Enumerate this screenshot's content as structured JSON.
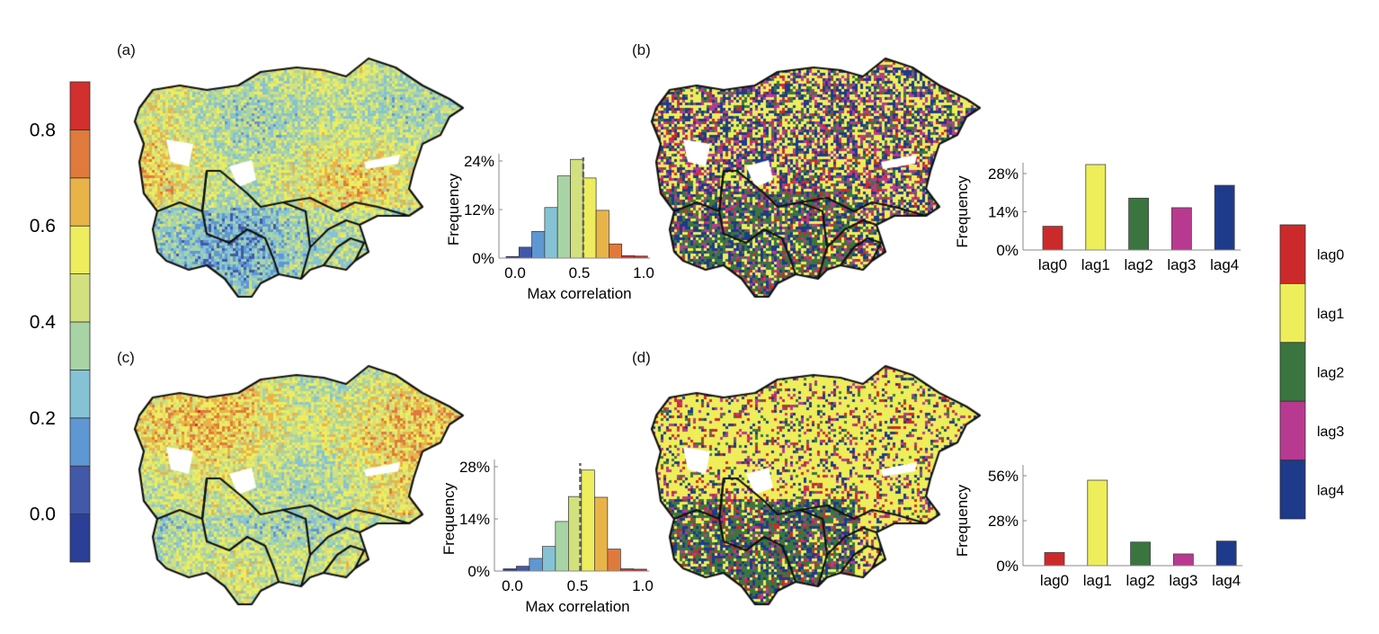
{
  "panels": [
    {
      "label": "(a)",
      "kind": "correlation"
    },
    {
      "label": "(b)",
      "kind": "lag"
    },
    {
      "label": "(c)",
      "kind": "correlation"
    },
    {
      "label": "(d)",
      "kind": "lag"
    }
  ],
  "colorbar": {
    "ticks": [
      "0.0",
      "0.2",
      "0.4",
      "0.6",
      "0.8"
    ],
    "tick_values": [
      0.0,
      0.2,
      0.4,
      0.6,
      0.8
    ],
    "range": [
      -0.1,
      0.9
    ],
    "colors": [
      "#2b3f96",
      "#4258a8",
      "#5f97d3",
      "#85c3d4",
      "#a8d4a5",
      "#d3e07e",
      "#eded5e",
      "#e8b44a",
      "#e07a3c",
      "#d1302e"
    ]
  },
  "lag_legend": {
    "labels": [
      "lag0",
      "lag1",
      "lag2",
      "lag3",
      "lag4"
    ],
    "colors": [
      "#cc2a2a",
      "#eeee5a",
      "#3a7540",
      "#b83a90",
      "#1e3a8a"
    ]
  },
  "chart_data": [
    {
      "id": "a-hist",
      "type": "bar",
      "xlabel": "Max correlation",
      "ylabel": "Frequency",
      "xticks": [
        "0.0",
        "0.5",
        "1.0"
      ],
      "xtick_values": [
        0,
        0.5,
        1.0
      ],
      "yticks": [
        "0%",
        "12%",
        "24%"
      ],
      "ytick_values": [
        0,
        12,
        24
      ],
      "bin_centers": [
        -0.02,
        0.08,
        0.18,
        0.28,
        0.38,
        0.48,
        0.58,
        0.68,
        0.78,
        0.88,
        0.98
      ],
      "values": [
        0.4,
        2.7,
        6.6,
        12.5,
        20.3,
        24.4,
        19.8,
        11.8,
        3.5,
        0.6,
        0.5
      ],
      "mean_line": 0.53,
      "ylim": [
        0,
        25
      ]
    },
    {
      "id": "b-bar",
      "type": "bar",
      "ylabel": "Frequency",
      "categories": [
        "lag0",
        "lag1",
        "lag2",
        "lag3",
        "lag4"
      ],
      "yticks": [
        "0%",
        "14%",
        "28%"
      ],
      "ytick_values": [
        0,
        14,
        28
      ],
      "values": [
        8.7,
        31.3,
        19.0,
        15.5,
        23.7
      ],
      "ylim": [
        0,
        32
      ]
    },
    {
      "id": "c-hist",
      "type": "bar",
      "xlabel": "Max correlation",
      "ylabel": "Frequency",
      "xticks": [
        "0.0",
        "0.5",
        "1.0"
      ],
      "xtick_values": [
        0,
        0.5,
        1.0
      ],
      "yticks": [
        "0%",
        "14%",
        "28%"
      ],
      "ytick_values": [
        0,
        14,
        28
      ],
      "bin_centers": [
        -0.02,
        0.08,
        0.18,
        0.28,
        0.38,
        0.48,
        0.58,
        0.68,
        0.78,
        0.88,
        0.98
      ],
      "values": [
        0.6,
        1.3,
        3.4,
        6.6,
        13.3,
        20.0,
        27.1,
        19.8,
        5.9,
        0.6,
        0.5
      ],
      "mean_line": 0.52,
      "ylim": [
        0,
        28
      ]
    },
    {
      "id": "d-bar",
      "type": "bar",
      "ylabel": "Frequency",
      "categories": [
        "lag0",
        "lag1",
        "lag2",
        "lag3",
        "lag4"
      ],
      "yticks": [
        "0%",
        "28%",
        "56%"
      ],
      "ytick_values": [
        0,
        28,
        56
      ],
      "values": [
        8.2,
        53.2,
        14.7,
        7.3,
        15.3
      ],
      "ylim": [
        0,
        56
      ]
    }
  ]
}
